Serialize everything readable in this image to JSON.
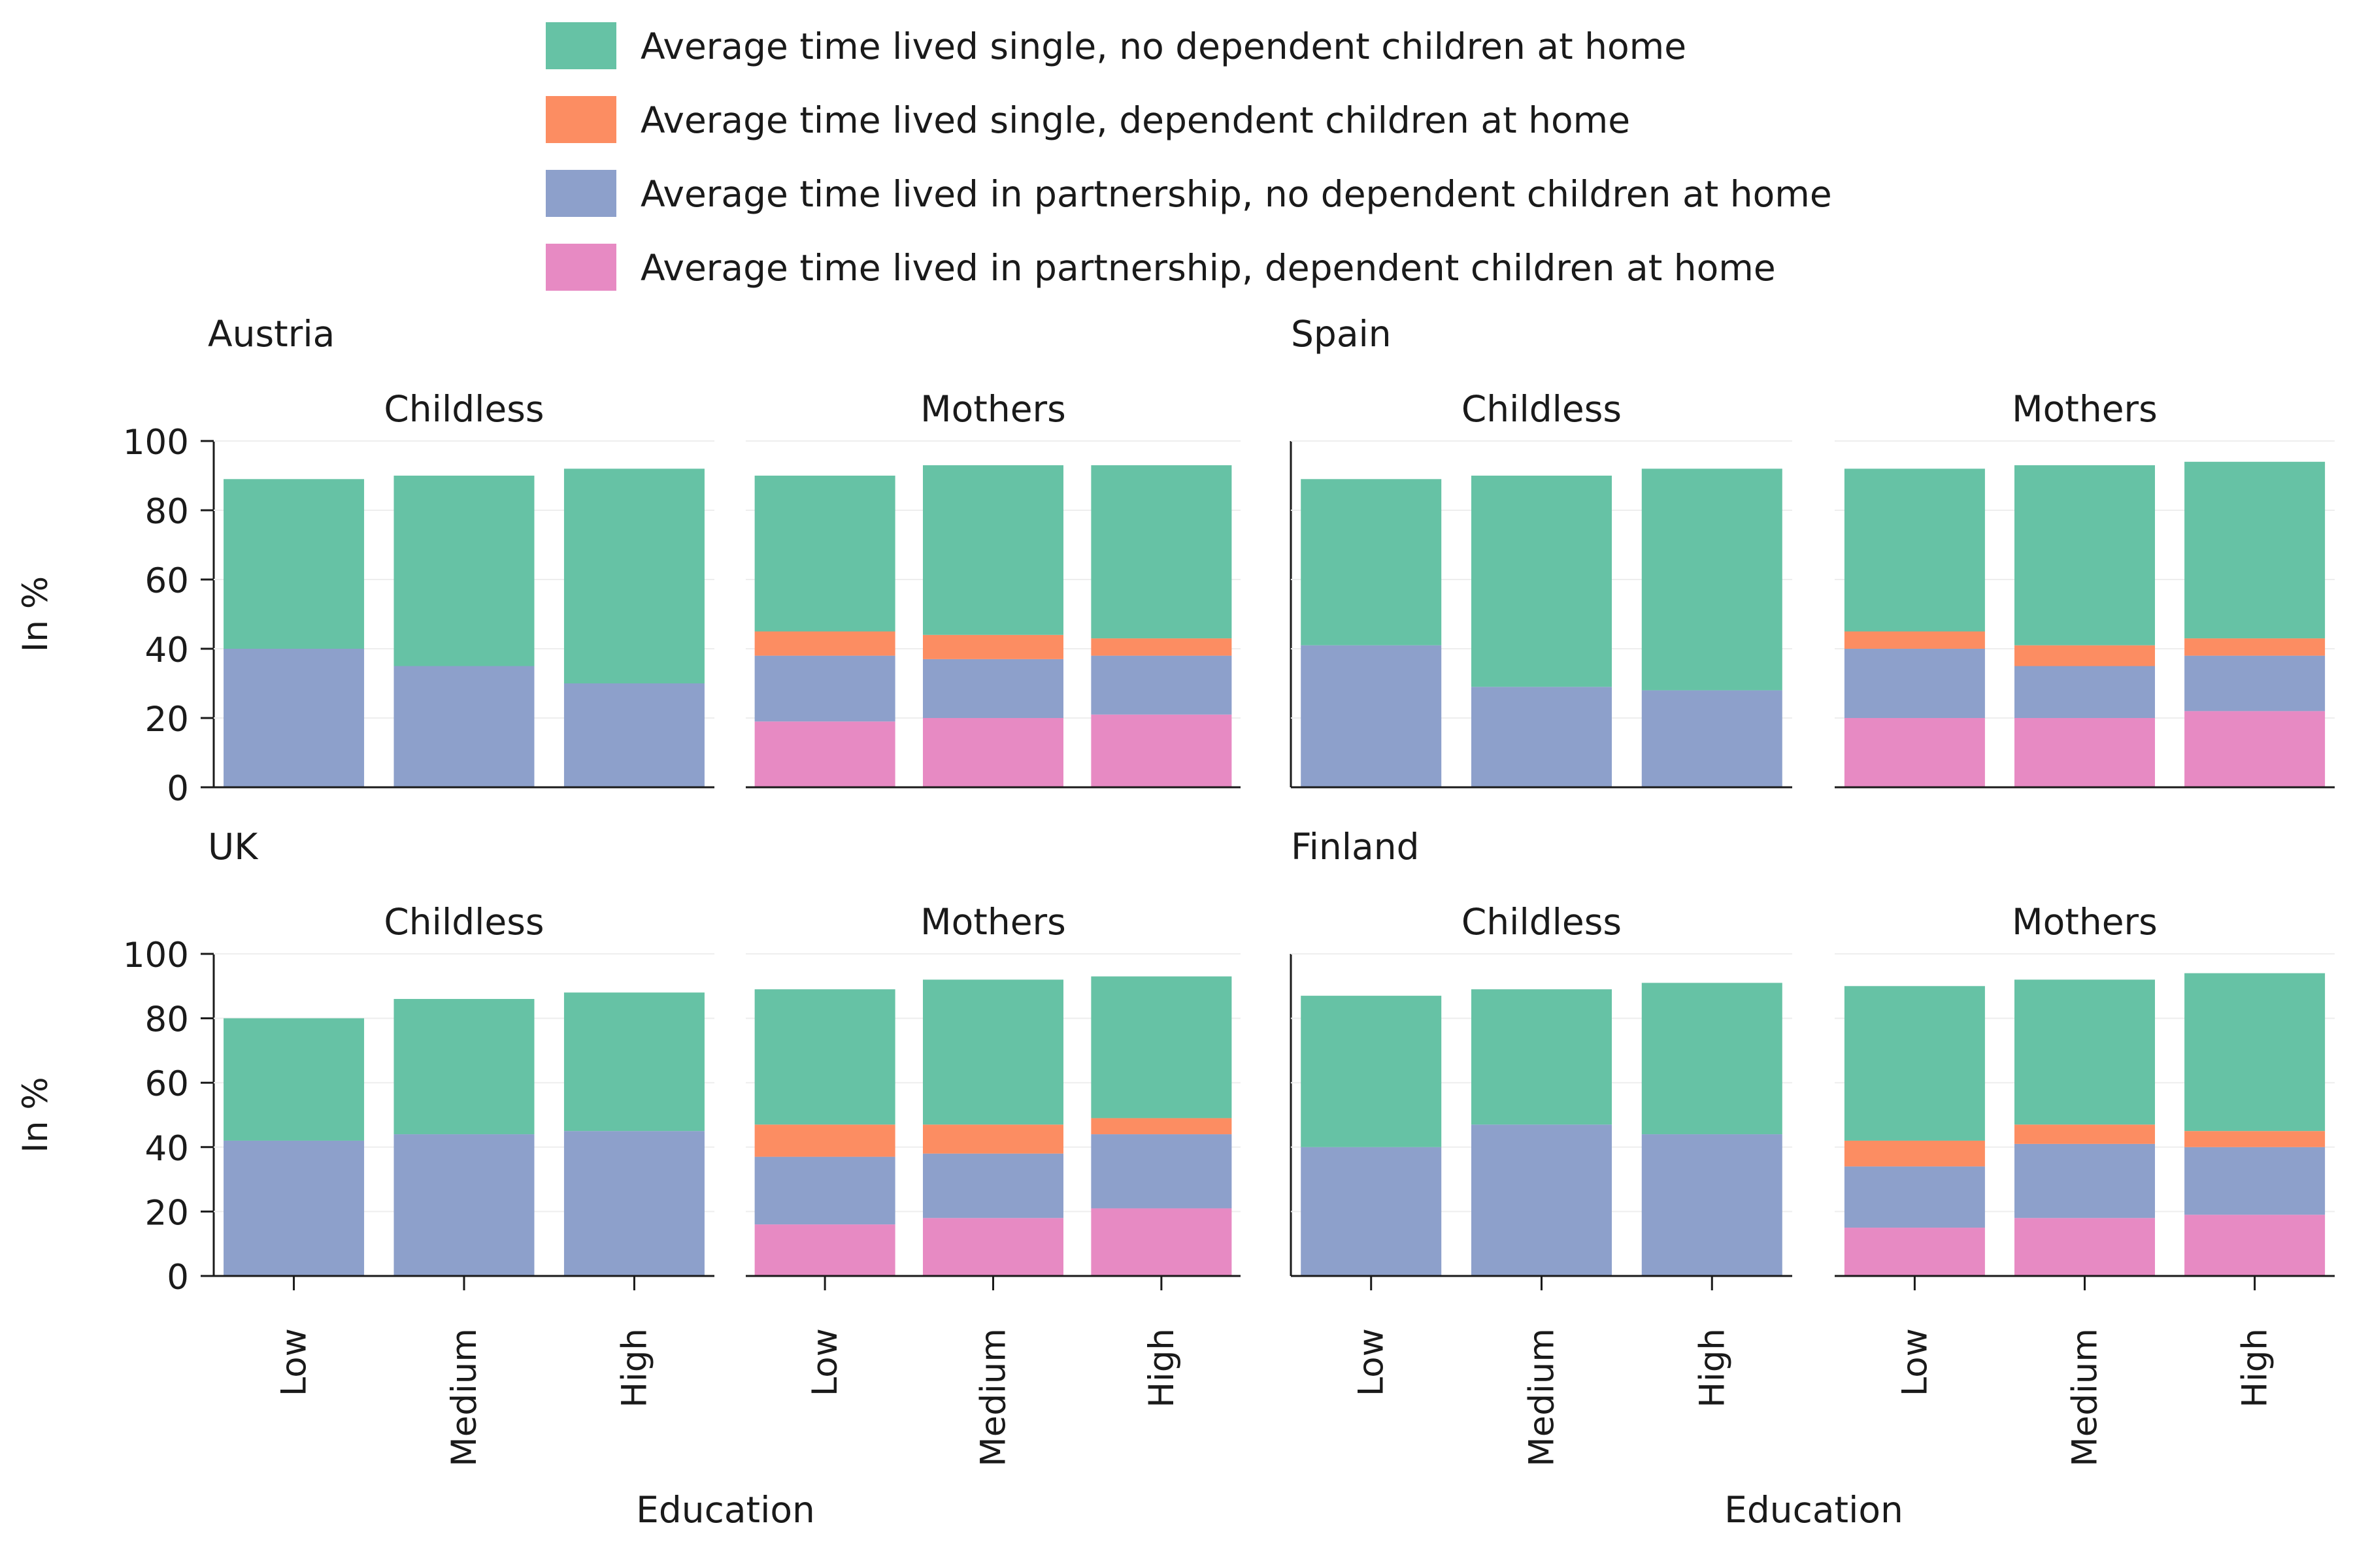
{
  "chart_data": {
    "type": "bar",
    "stacked": true,
    "categories": [
      "Low",
      "Medium",
      "High"
    ],
    "xlabel": "Education",
    "ylabel": "In %",
    "ylim": [
      0,
      100
    ],
    "yticks": [
      0,
      20,
      40,
      60,
      80,
      100
    ],
    "grid": "horizontal, light",
    "legend_position": "top",
    "legend": [
      {
        "key": "single_nochild",
        "label": "Average time lived single, no dependent children at home",
        "color": "#66c2a5"
      },
      {
        "key": "single_child",
        "label": "Average time lived single, dependent children at home",
        "color": "#fc8d62"
      },
      {
        "key": "partner_nochild",
        "label": "Average time lived in partnership, no dependent children at home",
        "color": "#8da0cb"
      },
      {
        "key": "partner_child",
        "label": "Average time lived in partnership, dependent children at home",
        "color": "#e78ac3"
      }
    ],
    "countries": [
      {
        "name": "Austria",
        "panels": [
          {
            "title": "Childless",
            "series": {
              "partner_child": [
                0,
                0,
                0
              ],
              "partner_nochild": [
                40,
                35,
                30
              ],
              "single_child": [
                0,
                0,
                0
              ],
              "single_nochild": [
                49,
                55,
                62
              ]
            }
          },
          {
            "title": "Mothers",
            "series": {
              "partner_child": [
                19,
                20,
                21
              ],
              "partner_nochild": [
                19,
                17,
                17
              ],
              "single_child": [
                7,
                7,
                5
              ],
              "single_nochild": [
                45,
                49,
                50
              ]
            }
          }
        ]
      },
      {
        "name": "Spain",
        "panels": [
          {
            "title": "Childless",
            "series": {
              "partner_child": [
                0,
                0,
                0
              ],
              "partner_nochild": [
                41,
                29,
                28
              ],
              "single_child": [
                0,
                0,
                0
              ],
              "single_nochild": [
                48,
                61,
                64
              ]
            }
          },
          {
            "title": "Mothers",
            "series": {
              "partner_child": [
                20,
                20,
                22
              ],
              "partner_nochild": [
                20,
                15,
                16
              ],
              "single_child": [
                5,
                6,
                5
              ],
              "single_nochild": [
                47,
                52,
                51
              ]
            }
          }
        ]
      },
      {
        "name": "UK",
        "panels": [
          {
            "title": "Childless",
            "series": {
              "partner_child": [
                0,
                0,
                0
              ],
              "partner_nochild": [
                42,
                44,
                45
              ],
              "single_child": [
                0,
                0,
                0
              ],
              "single_nochild": [
                38,
                42,
                43
              ]
            }
          },
          {
            "title": "Mothers",
            "series": {
              "partner_child": [
                16,
                18,
                21
              ],
              "partner_nochild": [
                21,
                20,
                23
              ],
              "single_child": [
                10,
                9,
                5
              ],
              "single_nochild": [
                42,
                45,
                44
              ]
            }
          }
        ]
      },
      {
        "name": "Finland",
        "panels": [
          {
            "title": "Childless",
            "series": {
              "partner_child": [
                0,
                0,
                0
              ],
              "partner_nochild": [
                40,
                47,
                44
              ],
              "single_child": [
                0,
                0,
                0
              ],
              "single_nochild": [
                47,
                42,
                47
              ]
            }
          },
          {
            "title": "Mothers",
            "series": {
              "partner_child": [
                15,
                18,
                19
              ],
              "partner_nochild": [
                19,
                23,
                21
              ],
              "single_child": [
                8,
                6,
                5
              ],
              "single_nochild": [
                48,
                45,
                49
              ]
            }
          }
        ]
      }
    ]
  }
}
